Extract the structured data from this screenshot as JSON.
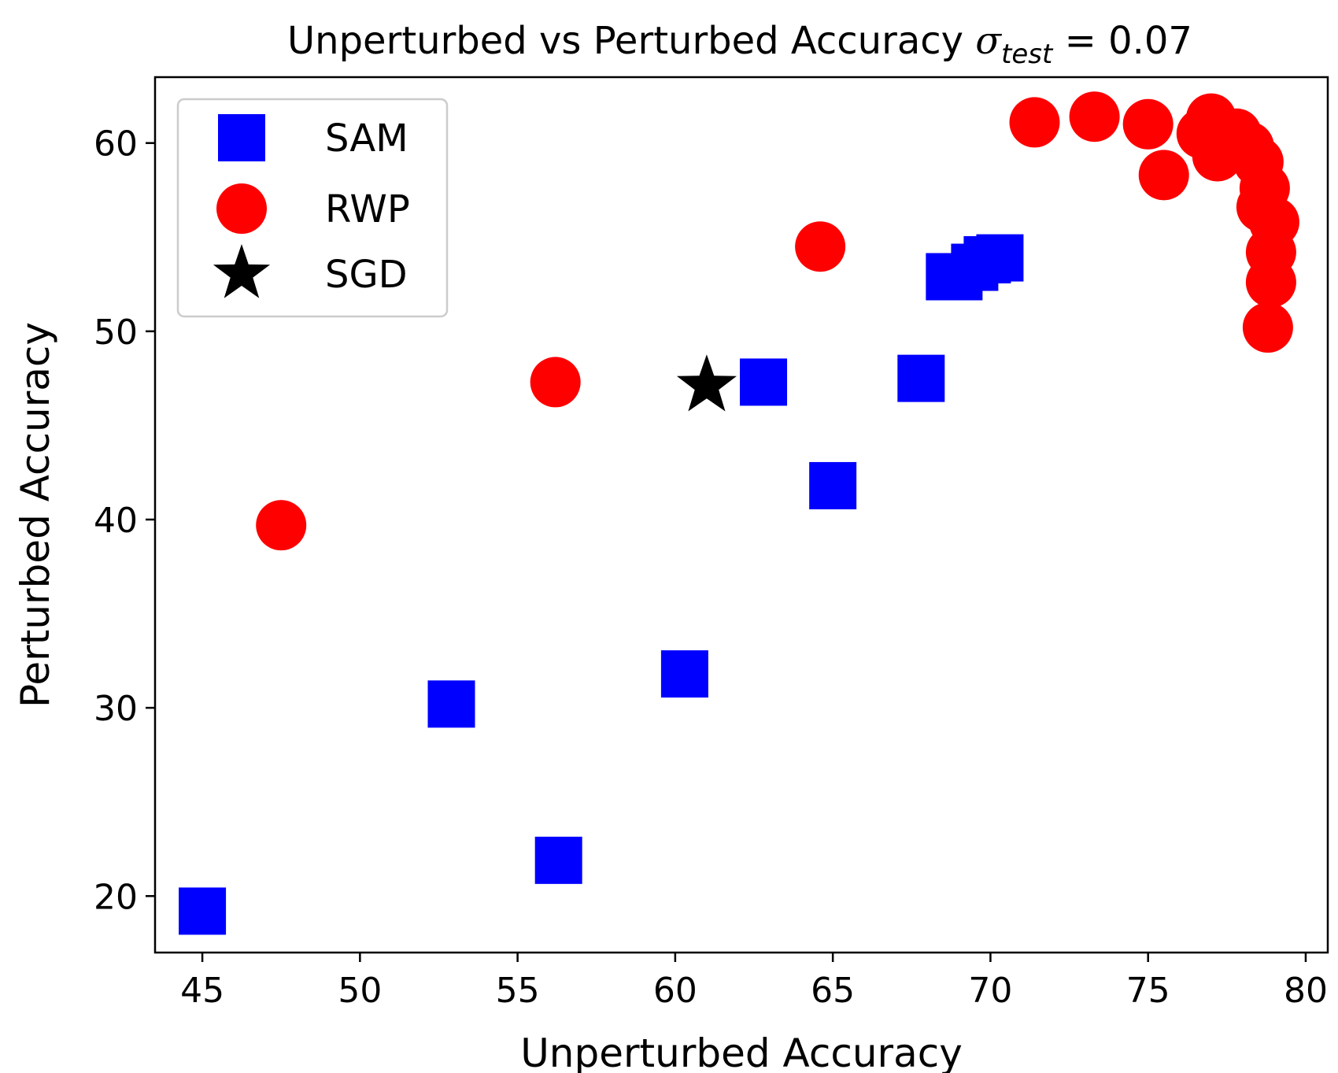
{
  "chart_data": {
    "type": "scatter",
    "title": {
      "main": "Unperturbed vs Perturbed Accuracy ",
      "math_var": "σ",
      "math_sub": "test",
      "math_rest": " = 0.07"
    },
    "xlabel": "Unperturbed Accuracy",
    "ylabel": "Perturbed Accuracy",
    "xlim": [
      43.5,
      80.7
    ],
    "ylim": [
      17.0,
      63.5
    ],
    "xticks": [
      45,
      50,
      55,
      60,
      65,
      70,
      75,
      80
    ],
    "yticks": [
      20,
      30,
      40,
      50,
      60
    ],
    "grid": false,
    "legend_position": "top-left",
    "series": [
      {
        "name": "SAM",
        "marker": "square",
        "color": "#0000ff",
        "points": [
          {
            "x": 45.0,
            "y": 19.2
          },
          {
            "x": 52.9,
            "y": 30.2
          },
          {
            "x": 56.3,
            "y": 21.9
          },
          {
            "x": 60.3,
            "y": 31.8
          },
          {
            "x": 62.8,
            "y": 47.3
          },
          {
            "x": 65.0,
            "y": 41.8
          },
          {
            "x": 67.8,
            "y": 47.5
          },
          {
            "x": 68.7,
            "y": 52.9
          },
          {
            "x": 69.0,
            "y": 52.9
          },
          {
            "x": 69.5,
            "y": 53.4
          },
          {
            "x": 69.9,
            "y": 53.8
          },
          {
            "x": 70.3,
            "y": 53.9
          }
        ]
      },
      {
        "name": "RWP",
        "marker": "circle",
        "color": "#ff0000",
        "points": [
          {
            "x": 47.5,
            "y": 39.7
          },
          {
            "x": 56.2,
            "y": 47.3
          },
          {
            "x": 64.6,
            "y": 54.5
          },
          {
            "x": 71.4,
            "y": 61.1
          },
          {
            "x": 73.3,
            "y": 61.4
          },
          {
            "x": 75.0,
            "y": 61.0
          },
          {
            "x": 75.5,
            "y": 58.3
          },
          {
            "x": 76.7,
            "y": 60.5
          },
          {
            "x": 77.0,
            "y": 61.3
          },
          {
            "x": 77.2,
            "y": 59.3
          },
          {
            "x": 77.8,
            "y": 60.5
          },
          {
            "x": 78.2,
            "y": 59.8
          },
          {
            "x": 78.5,
            "y": 59.0
          },
          {
            "x": 78.7,
            "y": 57.6
          },
          {
            "x": 78.6,
            "y": 56.6
          },
          {
            "x": 79.0,
            "y": 55.8
          },
          {
            "x": 78.9,
            "y": 54.2
          },
          {
            "x": 78.9,
            "y": 52.6
          },
          {
            "x": 78.8,
            "y": 50.2
          }
        ]
      },
      {
        "name": "SGD",
        "marker": "star",
        "color": "#000000",
        "points": [
          {
            "x": 61.0,
            "y": 47.1
          }
        ]
      }
    ]
  }
}
